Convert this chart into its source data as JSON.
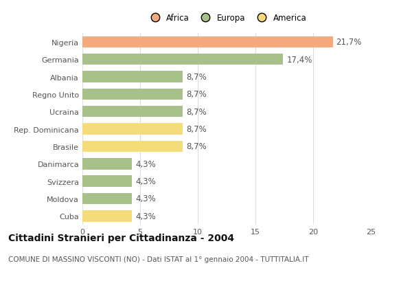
{
  "categories": [
    "Nigeria",
    "Germania",
    "Albania",
    "Regno Unito",
    "Ucraina",
    "Rep. Dominicana",
    "Brasile",
    "Danimarca",
    "Svizzera",
    "Moldova",
    "Cuba"
  ],
  "values": [
    21.7,
    17.4,
    8.7,
    8.7,
    8.7,
    8.7,
    8.7,
    4.3,
    4.3,
    4.3,
    4.3
  ],
  "colors": [
    "#F4A97F",
    "#A8C08A",
    "#A8C08A",
    "#A8C08A",
    "#A8C08A",
    "#F5DC7A",
    "#F5DC7A",
    "#A8C08A",
    "#A8C08A",
    "#A8C08A",
    "#F5DC7A"
  ],
  "labels": [
    "21,7%",
    "17,4%",
    "8,7%",
    "8,7%",
    "8,7%",
    "8,7%",
    "8,7%",
    "4,3%",
    "4,3%",
    "4,3%",
    "4,3%"
  ],
  "legend": [
    {
      "label": "Africa",
      "color": "#F4A97F"
    },
    {
      "label": "Europa",
      "color": "#A8C08A"
    },
    {
      "label": "America",
      "color": "#F5DC7A"
    }
  ],
  "xlim": [
    0,
    25
  ],
  "xticks": [
    0,
    5,
    10,
    15,
    20,
    25
  ],
  "title": "Cittadini Stranieri per Cittadinanza - 2004",
  "subtitle": "COMUNE DI MASSINO VISCONTI (NO) - Dati ISTAT al 1° gennaio 2004 - TUTTITALIA.IT",
  "background_color": "#ffffff",
  "grid_color": "#dddddd",
  "bar_height": 0.65,
  "label_fontsize": 8.5,
  "title_fontsize": 10,
  "subtitle_fontsize": 7.5,
  "tick_fontsize": 8,
  "legend_fontsize": 8.5
}
